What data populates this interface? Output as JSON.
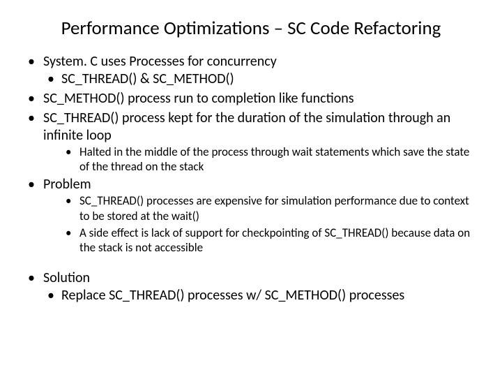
{
  "title": "Performance Optimizations – SC Code Refactoring",
  "b1": "System. C uses Processes for concurrency",
  "b1_1": " SC_THREAD() & SC_METHOD()",
  "b2": "SC_METHOD() process run to completion like functions",
  "b3": "SC_THREAD() process kept for the duration of the simulation through an infinite loop",
  "b3_1": "Halted in the middle of the process through wait statements which save the state of the thread on the stack",
  "b4": "Problem",
  "b4_1": "SC_THREAD() processes are expensive for simulation performance due to context to be stored at the wait()",
  "b4_2": "A side effect is lack of support for checkpointing of SC_THREAD() because data on the stack is not accessible",
  "b5": "Solution",
  "b5_1": "Replace SC_THREAD() processes w/ SC_METHOD() processes",
  "colors": {
    "background": "#ffffff",
    "text": "#000000"
  },
  "typography": {
    "title_fontsize": 27,
    "body_fontsize": 20,
    "sub_fontsize": 17,
    "font_family": "Calibri"
  }
}
